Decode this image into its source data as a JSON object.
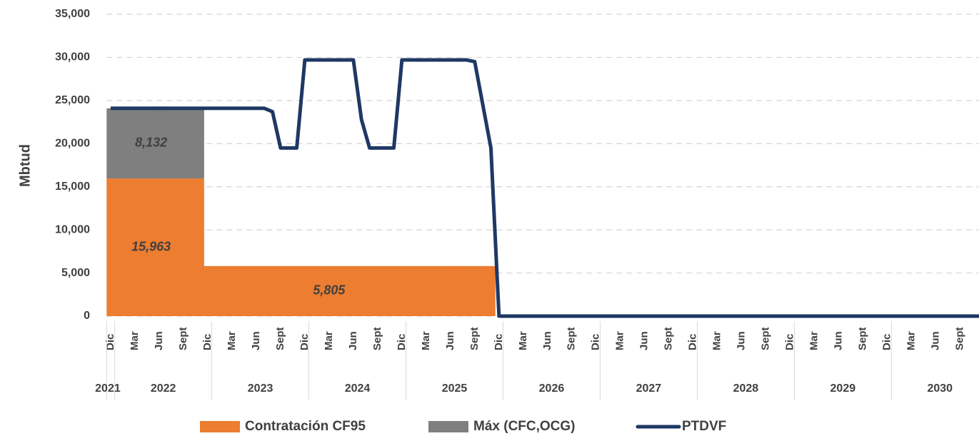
{
  "chart_data": {
    "type": "bar",
    "y_label": "Mbtud",
    "categories": [
      "Dic",
      null,
      null,
      "Mar",
      null,
      null,
      "Jun",
      null,
      null,
      "Sept",
      null,
      null,
      "Dic",
      null,
      null,
      "Mar",
      null,
      null,
      "Jun",
      null,
      null,
      "Sept",
      null,
      null,
      "Dic",
      null,
      null,
      "Mar",
      null,
      null,
      "Jun",
      null,
      null,
      "Sept",
      null,
      null,
      "Dic",
      null,
      null,
      "Mar",
      null,
      null,
      "Jun",
      null,
      null,
      "Sept",
      null,
      null,
      "Dic",
      null,
      null,
      "Mar",
      null,
      null,
      "Jun",
      null,
      null,
      "Sept",
      null,
      null,
      "Dic",
      null,
      null,
      "Mar",
      null,
      null,
      "Jun",
      null,
      null,
      "Sept",
      null,
      null,
      "Dic",
      null,
      null,
      "Mar",
      null,
      null,
      "Jun",
      null,
      null,
      "Sept",
      null,
      null,
      "Dic",
      null,
      null,
      "Mar",
      null,
      null,
      "Jun",
      null,
      null,
      "Sept",
      null,
      null,
      "Dic",
      null,
      null,
      "Mar",
      null,
      null,
      "Jun",
      null,
      null,
      "Sept",
      null,
      null,
      "Dic"
    ],
    "year_groups": [
      {
        "label": "2021",
        "count": 1
      },
      {
        "label": "2022",
        "count": 12
      },
      {
        "label": "2023",
        "count": 12
      },
      {
        "label": "2024",
        "count": 12
      },
      {
        "label": "2025",
        "count": 12
      },
      {
        "label": "2026",
        "count": 12
      },
      {
        "label": "2027",
        "count": 12
      },
      {
        "label": "2028",
        "count": 12
      },
      {
        "label": "2029",
        "count": 12
      },
      {
        "label": "2030",
        "count": 12
      }
    ],
    "series": [
      {
        "name": "Contratación CF95",
        "type": "bar",
        "color": "#ed7d31",
        "values": [
          15963,
          15963,
          15963,
          15963,
          15963,
          15963,
          15963,
          15963,
          15963,
          15963,
          15963,
          15963,
          5805,
          5805,
          5805,
          5805,
          5805,
          5805,
          5805,
          5805,
          5805,
          5805,
          5805,
          5805,
          5805,
          5805,
          5805,
          5805,
          5805,
          5805,
          5805,
          5805,
          5805,
          5805,
          5805,
          5805,
          5805,
          5805,
          5805,
          5805,
          5805,
          5805,
          5805,
          5805,
          5805,
          5805,
          5805,
          5805,
          0,
          0,
          0,
          0,
          0,
          0,
          0,
          0,
          0,
          0,
          0,
          0,
          0,
          0,
          0,
          0,
          0,
          0,
          0,
          0,
          0,
          0,
          0,
          0,
          0,
          0,
          0,
          0,
          0,
          0,
          0,
          0,
          0,
          0,
          0,
          0,
          0,
          0,
          0,
          0,
          0,
          0,
          0,
          0,
          0,
          0,
          0,
          0,
          0,
          0,
          0,
          0,
          0,
          0,
          0,
          0,
          0,
          0,
          0,
          0,
          0
        ],
        "value_labels": [
          null,
          null,
          null,
          null,
          null,
          "15,963",
          null,
          null,
          null,
          null,
          null,
          null,
          null,
          null,
          null,
          null,
          null,
          null,
          null,
          null,
          null,
          null,
          null,
          null,
          null,
          null,
          null,
          "5,805",
          null,
          null,
          null,
          null,
          null,
          null,
          null,
          null,
          null,
          null,
          null,
          null,
          null,
          null,
          null,
          null,
          null,
          null,
          null,
          null,
          null,
          null,
          null,
          null,
          null,
          null,
          null,
          null,
          null,
          null,
          null,
          null,
          null,
          null,
          null,
          null,
          null,
          null,
          null,
          null,
          null,
          null,
          null,
          null,
          null,
          null,
          null,
          null,
          null,
          null,
          null,
          null,
          null,
          null,
          null,
          null,
          null,
          null,
          null,
          null,
          null,
          null,
          null,
          null,
          null,
          null,
          null,
          null,
          null,
          null,
          null,
          null,
          null,
          null,
          null,
          null,
          null,
          null,
          null,
          null,
          null
        ]
      },
      {
        "name": "Máx (CFC,OCG)",
        "type": "bar",
        "color": "#7f7f7f",
        "values": [
          8132,
          8132,
          8132,
          8132,
          8132,
          8132,
          8132,
          8132,
          8132,
          8132,
          8132,
          8132,
          0,
          0,
          0,
          0,
          0,
          0,
          0,
          0,
          0,
          0,
          0,
          0,
          0,
          0,
          0,
          0,
          0,
          0,
          0,
          0,
          0,
          0,
          0,
          0,
          0,
          0,
          0,
          0,
          0,
          0,
          0,
          0,
          0,
          0,
          0,
          0,
          0,
          0,
          0,
          0,
          0,
          0,
          0,
          0,
          0,
          0,
          0,
          0,
          0,
          0,
          0,
          0,
          0,
          0,
          0,
          0,
          0,
          0,
          0,
          0,
          0,
          0,
          0,
          0,
          0,
          0,
          0,
          0,
          0,
          0,
          0,
          0,
          0,
          0,
          0,
          0,
          0,
          0,
          0,
          0,
          0,
          0,
          0,
          0,
          0,
          0,
          0,
          0,
          0,
          0,
          0,
          0,
          0,
          0,
          0,
          0,
          0
        ],
        "value_labels": [
          null,
          null,
          null,
          null,
          null,
          "8,132",
          null,
          null,
          null,
          null,
          null,
          null,
          null,
          null,
          null,
          null,
          null,
          null,
          null,
          null,
          null,
          null,
          null,
          null,
          null,
          null,
          null,
          null,
          null,
          null,
          null,
          null,
          null,
          null,
          null,
          null,
          null,
          null,
          null,
          null,
          null,
          null,
          null,
          null,
          null,
          null,
          null,
          null,
          null,
          null,
          null,
          null,
          null,
          null,
          null,
          null,
          null,
          null,
          null,
          null,
          null,
          null,
          null,
          null,
          null,
          null,
          null,
          null,
          null,
          null,
          null,
          null,
          null,
          null,
          null,
          null,
          null,
          null,
          null,
          null,
          null,
          null,
          null,
          null,
          null,
          null,
          null,
          null,
          null,
          null,
          null,
          null,
          null,
          null,
          null,
          null,
          null,
          null,
          null,
          null,
          null,
          null,
          null,
          null,
          null,
          null,
          null,
          null,
          null
        ]
      },
      {
        "name": "PTDVF",
        "type": "line",
        "color": "#1f3864",
        "values": [
          24095,
          24095,
          24095,
          24095,
          24095,
          24095,
          24095,
          24095,
          24095,
          24095,
          24095,
          24095,
          24095,
          24095,
          24095,
          24095,
          24095,
          24095,
          24095,
          24095,
          23700,
          19500,
          19500,
          19500,
          29700,
          29700,
          29700,
          29700,
          29700,
          29700,
          29700,
          22800,
          19500,
          19500,
          19500,
          19500,
          29700,
          29700,
          29700,
          29700,
          29700,
          29700,
          29700,
          29700,
          29700,
          29500,
          24500,
          19500,
          0,
          0,
          0,
          0,
          0,
          0,
          0,
          0,
          0,
          0,
          0,
          0,
          0,
          0,
          0,
          0,
          0,
          0,
          0,
          0,
          0,
          0,
          0,
          0,
          0,
          0,
          0,
          0,
          0,
          0,
          0,
          0,
          0,
          0,
          0,
          0,
          0,
          0,
          0,
          0,
          0,
          0,
          0,
          0,
          0,
          0,
          0,
          0,
          0,
          0,
          0,
          0,
          0,
          0,
          0,
          0,
          0,
          0,
          0,
          0,
          0
        ]
      }
    ],
    "ylim": [
      0,
      35000
    ],
    "yticks": [
      0,
      {
        "value": 5000,
        "label": "5,000"
      },
      {
        "value": 10000,
        "label": "10,000"
      },
      {
        "value": 15000,
        "label": "15,000"
      },
      {
        "value": 20000,
        "label": "20,000"
      },
      {
        "value": 25000,
        "label": "25,000"
      },
      {
        "value": 30000,
        "label": "30,000"
      },
      {
        "value": 35000,
        "label": "35,000"
      }
    ],
    "grid": true,
    "legend": "bottom"
  }
}
